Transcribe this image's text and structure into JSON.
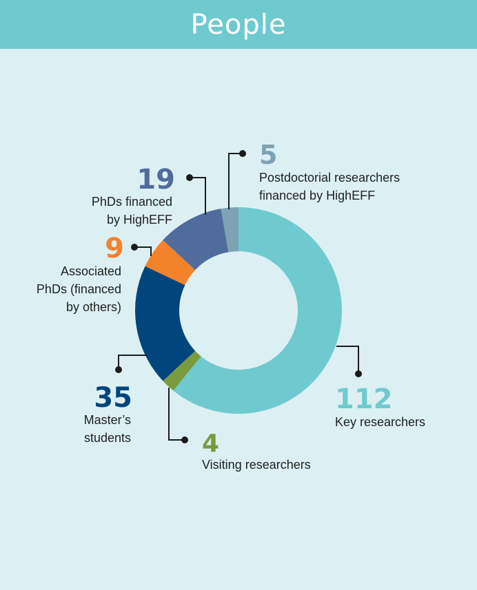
{
  "header": {
    "title": "People"
  },
  "colors": {
    "background": "#dcf0f3",
    "header": "#6fcad0",
    "leader": "#1a1a1a"
  },
  "chart_data": {
    "type": "pie",
    "donut": true,
    "title": "People",
    "slices": [
      {
        "value": 112,
        "label_lines": [
          "Key researchers"
        ],
        "color": "#6fcad0"
      },
      {
        "value": 4,
        "label_lines": [
          "Visiting researchers"
        ],
        "color": "#799b3e"
      },
      {
        "value": 35,
        "label_lines": [
          "Master’s",
          "students"
        ],
        "color": "#00457c"
      },
      {
        "value": 9,
        "label_lines": [
          "Associated",
          "PhDs (financed",
          "by others)"
        ],
        "color": "#f4822a"
      },
      {
        "value": 19,
        "label_lines": [
          "PhDs financed",
          "by HighEFF"
        ],
        "color": "#4f6c9d"
      },
      {
        "value": 5,
        "label_lines": [
          "Postdoctorial researchers",
          "financed by HighEFF"
        ],
        "color": "#7da2b4"
      }
    ]
  }
}
